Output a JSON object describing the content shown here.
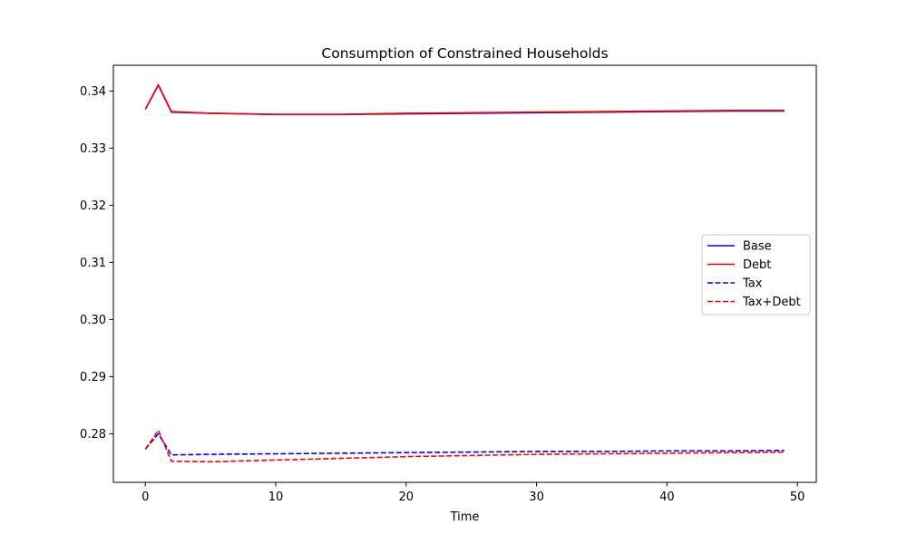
{
  "chart_data": {
    "type": "line",
    "title": "Consumption of Constrained Households",
    "xlabel": "Time",
    "ylabel": "",
    "xlim": [
      -2.45,
      51.45
    ],
    "ylim": [
      0.2715,
      0.3445
    ],
    "xticks": [
      0,
      10,
      20,
      30,
      40,
      50
    ],
    "yticks": [
      0.28,
      0.29,
      0.3,
      0.31,
      0.32,
      0.33,
      0.34
    ],
    "ytick_labels": [
      "0.28",
      "0.29",
      "0.30",
      "0.31",
      "0.32",
      "0.33",
      "0.34"
    ],
    "grid": false,
    "legend_position": "center-right",
    "series": [
      {
        "name": "Base",
        "color": "#0000ff",
        "style": "solid",
        "x": [
          0,
          1,
          2,
          5,
          10,
          15,
          20,
          25,
          30,
          35,
          40,
          45,
          49
        ],
        "y": [
          0.3368,
          0.341,
          0.3363,
          0.3361,
          0.3359,
          0.3359,
          0.336,
          0.3361,
          0.3362,
          0.3363,
          0.3364,
          0.3365,
          0.3365
        ]
      },
      {
        "name": "Debt",
        "color": "#ff0000",
        "style": "solid",
        "x": [
          0,
          1,
          2,
          5,
          10,
          15,
          20,
          25,
          30,
          35,
          40,
          45,
          49
        ],
        "y": [
          0.3368,
          0.3411,
          0.3364,
          0.3361,
          0.3359,
          0.3359,
          0.3361,
          0.3362,
          0.3363,
          0.3364,
          0.3365,
          0.3366,
          0.3366
        ]
      },
      {
        "name": "Tax",
        "color": "#0000ff",
        "style": "dashed",
        "x": [
          0,
          1,
          2,
          5,
          10,
          15,
          20,
          25,
          30,
          35,
          40,
          45,
          49
        ],
        "y": [
          0.2773,
          0.28,
          0.2763,
          0.2764,
          0.2765,
          0.2766,
          0.2767,
          0.2768,
          0.2769,
          0.2769,
          0.277,
          0.277,
          0.2771
        ]
      },
      {
        "name": "Tax+Debt",
        "color": "#ff0000",
        "style": "dashed",
        "x": [
          0,
          1,
          2,
          5,
          10,
          15,
          20,
          25,
          30,
          35,
          40,
          45,
          49
        ],
        "y": [
          0.2773,
          0.2806,
          0.2752,
          0.2751,
          0.2754,
          0.2757,
          0.276,
          0.2762,
          0.2764,
          0.2765,
          0.2766,
          0.2767,
          0.2768
        ]
      }
    ]
  }
}
